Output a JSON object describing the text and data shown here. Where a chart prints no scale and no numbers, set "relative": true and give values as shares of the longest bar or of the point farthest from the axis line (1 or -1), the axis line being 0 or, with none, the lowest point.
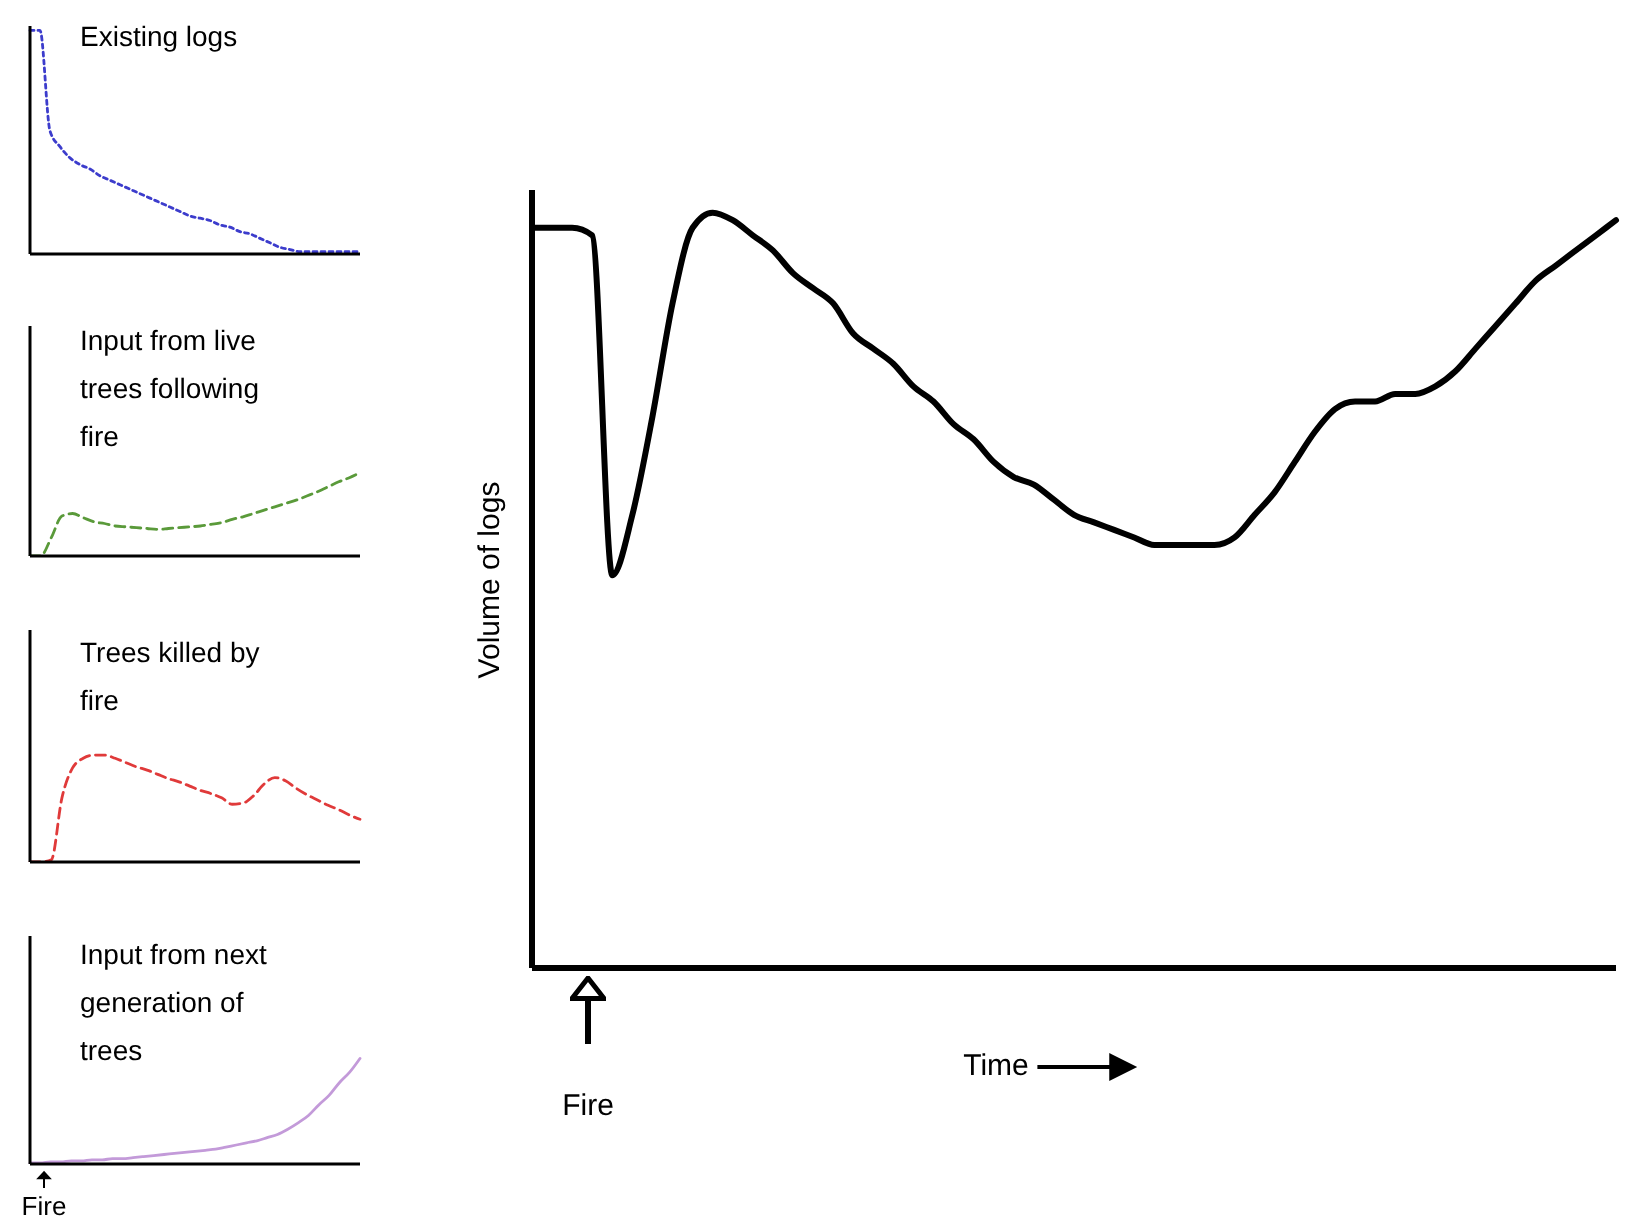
{
  "chart_data": [
    {
      "type": "line",
      "title": "Existing logs",
      "relative": true,
      "line_style": "dotted",
      "categories": [
        null,
        null,
        null,
        null,
        null,
        null,
        null,
        null,
        null,
        null,
        null,
        null,
        null,
        null,
        null,
        null,
        null,
        null,
        null,
        null,
        null,
        null,
        null,
        null,
        null,
        null,
        null,
        null,
        null,
        null,
        null,
        null,
        null,
        null
      ],
      "series": [
        {
          "color": "#3c3ccc",
          "values": [
            1.0,
            1.0,
            0.55,
            0.48,
            0.43,
            0.4,
            0.38,
            0.35,
            0.33,
            0.31,
            0.29,
            0.27,
            0.25,
            0.23,
            0.21,
            0.19,
            0.17,
            0.16,
            0.15,
            0.13,
            0.12,
            0.1,
            0.09,
            0.07,
            0.05,
            0.03,
            0.02,
            0.01,
            0.01,
            0.01,
            0.01,
            0.01,
            0.01,
            0.01
          ]
        }
      ]
    },
    {
      "type": "line",
      "title": "Input from live trees following fire",
      "relative": true,
      "line_style": "dashed",
      "categories": [
        null,
        null,
        null,
        null,
        null,
        null,
        null,
        null,
        null,
        null,
        null,
        null,
        null,
        null,
        null,
        null,
        null,
        null,
        null,
        null,
        null,
        null,
        null,
        null,
        null,
        null,
        null,
        null,
        null,
        null,
        null,
        null
      ],
      "series": [
        {
          "color": "#5a9a3a",
          "values": [
            0,
            0,
            0.22,
            0.48,
            0.51,
            0.46,
            0.41,
            0.39,
            0.36,
            0.35,
            0.34,
            0.33,
            0.32,
            0.33,
            0.34,
            0.35,
            0.36,
            0.38,
            0.4,
            0.44,
            0.47,
            0.51,
            0.55,
            0.59,
            0.63,
            0.67,
            0.72,
            0.77,
            0.83,
            0.89,
            0.94,
            1.0
          ]
        }
      ]
    },
    {
      "type": "line",
      "title": "Trees killed by fire",
      "relative": true,
      "line_style": "dashed",
      "categories": [
        null,
        null,
        null,
        null,
        null,
        null,
        null,
        null,
        null,
        null,
        null,
        null,
        null,
        null,
        null,
        null,
        null,
        null,
        null,
        null,
        null,
        null,
        null,
        null,
        null,
        null,
        null,
        null,
        null,
        null,
        null,
        null
      ],
      "series": [
        {
          "color": "#e03a3a",
          "values": [
            0,
            0,
            0.02,
            0.6,
            0.88,
            0.97,
            1.0,
            1.0,
            0.97,
            0.93,
            0.89,
            0.86,
            0.82,
            0.78,
            0.75,
            0.71,
            0.67,
            0.64,
            0.6,
            0.54,
            0.55,
            0.62,
            0.73,
            0.79,
            0.76,
            0.69,
            0.63,
            0.58,
            0.53,
            0.49,
            0.44,
            0.4
          ]
        }
      ]
    },
    {
      "type": "line",
      "title": "Input from next generation of trees",
      "relative": true,
      "line_style": "solid",
      "annotations": [
        "Fire"
      ],
      "categories": [
        null,
        null,
        null,
        null,
        null,
        null,
        null,
        null,
        null,
        null,
        null,
        null,
        null,
        null,
        null,
        null,
        null,
        null,
        null,
        null,
        null,
        null,
        null,
        null,
        null,
        null,
        null,
        null,
        null,
        null,
        null,
        null,
        null
      ],
      "series": [
        {
          "color": "#c39ad9",
          "values": [
            0.01,
            0.01,
            0.02,
            0.02,
            0.03,
            0.03,
            0.04,
            0.04,
            0.05,
            0.05,
            0.06,
            0.07,
            0.08,
            0.09,
            0.1,
            0.11,
            0.12,
            0.13,
            0.14,
            0.16,
            0.18,
            0.2,
            0.22,
            0.25,
            0.28,
            0.33,
            0.39,
            0.46,
            0.56,
            0.65,
            0.77,
            0.87,
            1.0
          ]
        }
      ]
    },
    {
      "type": "line",
      "xlabel": "Time",
      "ylabel": "Volume of logs",
      "relative": true,
      "line_style": "solid",
      "annotations": [
        "Fire"
      ],
      "categories": [
        null,
        null,
        null,
        null,
        null,
        null,
        null,
        null,
        null,
        null,
        null,
        null,
        null,
        null,
        null,
        null,
        null,
        null,
        null,
        null,
        null,
        null,
        null,
        null,
        null,
        null,
        null,
        null,
        null,
        null,
        null,
        null,
        null,
        null,
        null,
        null,
        null,
        null,
        null,
        null,
        null,
        null,
        null,
        null,
        null,
        null,
        null,
        null,
        null,
        null,
        null,
        null,
        null,
        null,
        null
      ],
      "series": [
        {
          "color": "#000000",
          "values": [
            0.98,
            0.98,
            0.98,
            0.97,
            0.52,
            0.6,
            0.73,
            0.88,
            0.98,
            1.0,
            0.99,
            0.97,
            0.95,
            0.92,
            0.9,
            0.88,
            0.84,
            0.82,
            0.8,
            0.77,
            0.75,
            0.72,
            0.7,
            0.67,
            0.65,
            0.64,
            0.62,
            0.6,
            0.59,
            0.58,
            0.57,
            0.56,
            0.56,
            0.56,
            0.56,
            0.57,
            0.6,
            0.63,
            0.67,
            0.71,
            0.74,
            0.75,
            0.75,
            0.76,
            0.76,
            0.77,
            0.79,
            0.82,
            0.85,
            0.88,
            0.91,
            0.93,
            0.95,
            0.97,
            0.99
          ]
        }
      ]
    }
  ]
}
